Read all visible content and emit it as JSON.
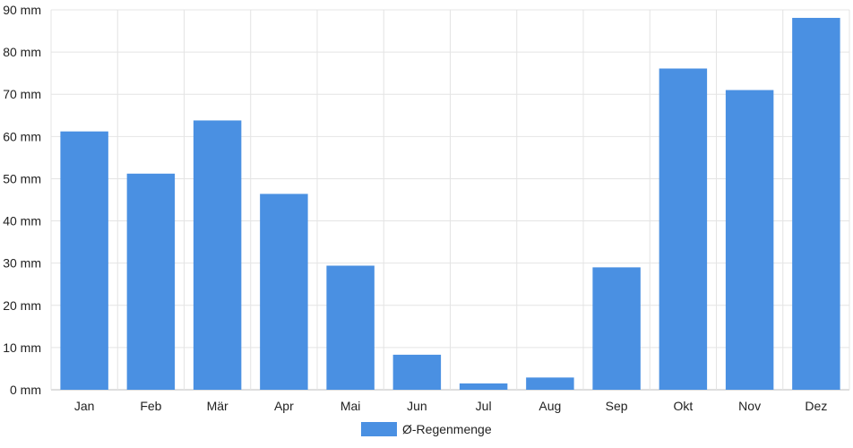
{
  "chart_data": {
    "type": "bar",
    "categories": [
      "Jan",
      "Feb",
      "Mär",
      "Apr",
      "Mai",
      "Jun",
      "Jul",
      "Aug",
      "Sep",
      "Okt",
      "Nov",
      "Dez"
    ],
    "series": [
      {
        "name": "Ø-Regenmenge",
        "color": "#4a90e2",
        "values": [
          61.2,
          51.2,
          63.8,
          46.4,
          29.4,
          8.3,
          1.5,
          2.9,
          29.0,
          76.1,
          71.0,
          88.1
        ]
      }
    ],
    "y_ticks": [
      "0 mm",
      "10 mm",
      "20 mm",
      "30 mm",
      "40 mm",
      "50 mm",
      "60 mm",
      "70 mm",
      "80 mm",
      "90 mm"
    ],
    "ylim": [
      0,
      90
    ],
    "grid": true,
    "legend_position": "bottom-center",
    "title": "",
    "xlabel": "",
    "ylabel": ""
  },
  "legend": {
    "label": "Ø-Regenmenge"
  }
}
